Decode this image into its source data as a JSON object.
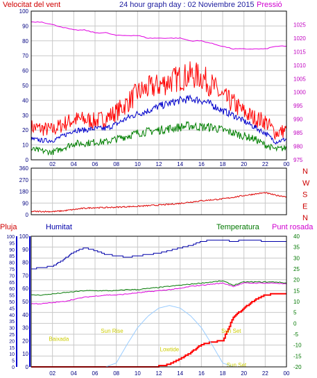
{
  "header": {
    "left_title": "Velocitat del vent",
    "center_title": "24 hour graph day : 02 Noviembre 2015",
    "right_title": "Pressió"
  },
  "x_ticks": [
    "02",
    "04",
    "06",
    "08",
    "10",
    "12",
    "14",
    "16",
    "18",
    "20",
    "22",
    "00"
  ],
  "colors": {
    "wind": "#ff0000",
    "wind_avg": "#0000cc",
    "wind_min": "#007f00",
    "pressure": "#e000e0",
    "direction": "#dd0000",
    "rain": "#ff0000",
    "humidity": "#0000aa",
    "temperature": "#007700",
    "dewpoint": "#dd00dd",
    "solar": "#99ccff",
    "grid": "#c8c8c8",
    "frame": "#000000"
  },
  "chart_data": [
    {
      "type": "line",
      "name": "wind_pressure",
      "y_left": {
        "label": "Velocitat del vent",
        "range": [
          0,
          100
        ],
        "ticks": [
          "0",
          "10",
          "20",
          "30",
          "40",
          "50",
          "60",
          "70",
          "80",
          "90",
          "100"
        ]
      },
      "y_right": {
        "label": "Pressió",
        "range": [
          975,
          1030
        ],
        "ticks": [
          "975",
          "980",
          "985",
          "990",
          "995",
          "1000",
          "1005",
          "1010",
          "1015",
          "1020",
          "1025"
        ]
      },
      "x_hours": [
        0,
        1,
        2,
        3,
        4,
        5,
        6,
        7,
        8,
        9,
        10,
        11,
        12,
        13,
        14,
        15,
        16,
        17,
        18,
        19,
        20,
        21,
        22,
        23,
        24
      ],
      "series": [
        {
          "key": "wind_max",
          "color_key": "wind",
          "values": [
            22,
            21,
            20,
            24,
            27,
            27,
            26,
            28,
            32,
            38,
            45,
            48,
            50,
            53,
            55,
            57,
            56,
            50,
            42,
            38,
            32,
            28,
            26,
            18,
            20
          ]
        },
        {
          "key": "wind_avg",
          "color_key": "wind_avg",
          "values": [
            14,
            13,
            13,
            16,
            20,
            20,
            21,
            21,
            24,
            28,
            31,
            33,
            36,
            38,
            40,
            41,
            40,
            37,
            33,
            30,
            26,
            22,
            18,
            12,
            14
          ]
        },
        {
          "key": "wind_min",
          "color_key": "wind_min",
          "values": [
            7,
            6,
            5,
            8,
            11,
            11,
            12,
            12,
            14,
            16,
            18,
            19,
            20,
            21,
            22,
            23,
            22,
            22,
            20,
            18,
            16,
            14,
            10,
            7,
            8
          ]
        },
        {
          "key": "pressure",
          "color_key": "pressure",
          "axis": "right",
          "values": [
            1026,
            1026,
            1025,
            1024,
            1023,
            1023,
            1022,
            1022,
            1021,
            1021,
            1021,
            1020,
            1020,
            1020,
            1020,
            1019,
            1019,
            1018,
            1017,
            1016,
            1016,
            1016,
            1016,
            1017,
            1017
          ]
        }
      ]
    },
    {
      "type": "line",
      "name": "wind_direction",
      "y_left": {
        "range": [
          0,
          360
        ],
        "ticks": [
          "0",
          "90",
          "180",
          "270",
          "360"
        ]
      },
      "y_right_labels": [
        "N",
        "W",
        "S",
        "E",
        "N"
      ],
      "x_hours": [
        0,
        1,
        2,
        3,
        4,
        5,
        6,
        7,
        8,
        9,
        10,
        11,
        12,
        13,
        14,
        15,
        16,
        17,
        18,
        19,
        20,
        21,
        22,
        23,
        24
      ],
      "series": [
        {
          "key": "direction",
          "color_key": "direction",
          "values": [
            25,
            25,
            24,
            30,
            40,
            50,
            55,
            55,
            58,
            62,
            65,
            70,
            75,
            80,
            88,
            98,
            108,
            115,
            122,
            135,
            148,
            160,
            170,
            150,
            140
          ]
        }
      ]
    },
    {
      "type": "line",
      "name": "rain_humidity_temp",
      "labels": {
        "rain": "Pluja",
        "humidity": "Humitat",
        "temperature": "Temperatura",
        "dewpoint": "Punt rosada"
      },
      "y_left_rain": {
        "range": [
          0,
          100
        ],
        "ticks": [
          "0",
          "5",
          "10",
          "15",
          "20",
          "25",
          "30",
          "35",
          "40",
          "45",
          "50",
          "55",
          "60",
          "65",
          "70",
          "75",
          "80",
          "85",
          "90",
          "95",
          "100"
        ]
      },
      "y_left_humidity": {
        "range": [
          0,
          100
        ],
        "ticks": [
          "0",
          "10",
          "20",
          "30",
          "40",
          "50",
          "60",
          "70",
          "80",
          "90",
          "100"
        ]
      },
      "y_right_temp": {
        "range": [
          -20,
          40
        ],
        "ticks": [
          "-20",
          "-15",
          "-10",
          "-5",
          "0",
          "5",
          "10",
          "15",
          "20",
          "25",
          "30",
          "35",
          "40"
        ]
      },
      "x_hours": [
        0,
        1,
        2,
        3,
        4,
        5,
        6,
        7,
        8,
        9,
        10,
        11,
        12,
        13,
        14,
        15,
        16,
        17,
        18,
        19,
        20,
        21,
        22,
        23,
        24
      ],
      "series": [
        {
          "key": "humidity",
          "color_key": "humidity",
          "values": [
            75,
            76,
            77,
            82,
            88,
            91,
            89,
            86,
            85,
            84,
            85,
            86,
            87,
            89,
            91,
            93,
            96,
            97,
            97,
            96,
            97,
            97,
            96,
            96,
            96
          ]
        },
        {
          "key": "temperature",
          "color_key": "temperature",
          "axis": "right",
          "values": [
            13,
            13,
            13.5,
            14,
            14.5,
            15,
            15,
            15,
            15,
            15.5,
            15.5,
            16,
            16.5,
            17,
            17.5,
            18,
            18.5,
            19,
            19.5,
            17.5,
            19,
            19,
            19,
            19,
            18.5
          ]
        },
        {
          "key": "dewpoint",
          "color_key": "dewpoint",
          "axis": "right",
          "values": [
            9,
            9,
            9.5,
            10,
            11,
            12,
            12.5,
            13,
            13,
            13.5,
            14,
            14.5,
            15,
            15.5,
            16,
            17,
            17.5,
            18,
            18.5,
            17,
            18.5,
            18.5,
            18.5,
            18.5,
            18
          ]
        },
        {
          "key": "rain",
          "color_key": "rain",
          "values": [
            0,
            0,
            0,
            0,
            0,
            0,
            0,
            0,
            0,
            0,
            0,
            0,
            0.5,
            2,
            6,
            11,
            17,
            19,
            20,
            38,
            45,
            51,
            55,
            56,
            56
          ]
        },
        {
          "key": "solar",
          "color_key": "solar",
          "values": [
            0,
            0,
            0,
            0,
            0,
            0,
            0,
            0,
            3,
            17,
            30,
            39,
            45,
            47,
            45,
            39,
            30,
            17,
            3,
            0,
            0,
            0,
            0,
            0,
            0
          ]
        }
      ],
      "annotations": [
        {
          "text": "Baixada",
          "hour": 2.6,
          "level": 20
        },
        {
          "text": "Sun Rise",
          "hour": 7.6,
          "level": 26
        },
        {
          "text": "Lowtide",
          "hour": 13.0,
          "level": 12
        },
        {
          "text": "Sun Set",
          "hour": 18.8,
          "level": 26
        },
        {
          "text": "Sun Set",
          "hour": 19.3,
          "level": 0
        }
      ]
    }
  ]
}
